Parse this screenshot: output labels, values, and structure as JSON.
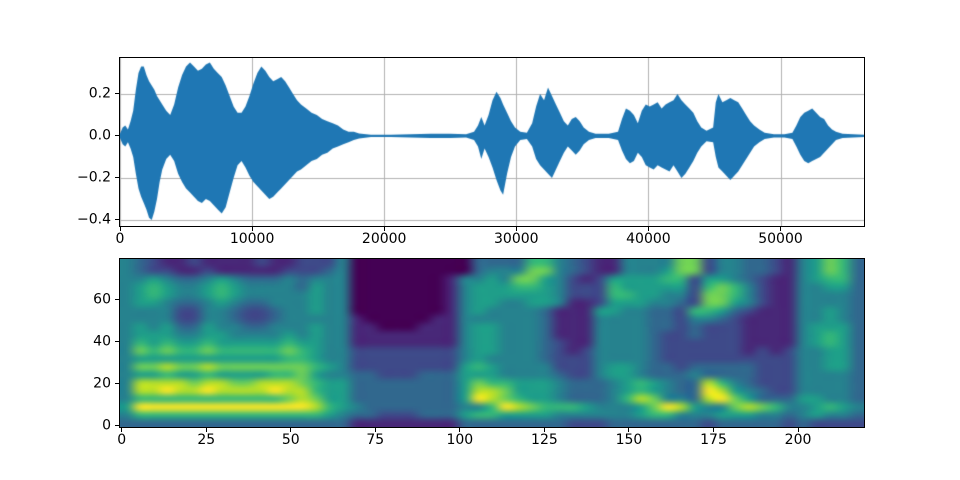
{
  "figure": {
    "background": "#ffffff",
    "type": "matplotlib-figure"
  },
  "chart_data": [
    {
      "type": "line",
      "name": "audio-waveform",
      "title": "",
      "xlabel": "",
      "ylabel": "",
      "line_color": "#1f77b4",
      "grid": true,
      "grid_color": "#b0b0b0",
      "xlim": [
        0,
        56320
      ],
      "ylim": [
        -0.429,
        0.371
      ],
      "xticks": [
        0,
        10000,
        20000,
        30000,
        40000,
        50000
      ],
      "xtick_labels": [
        "0",
        "10000",
        "20000",
        "30000",
        "40000",
        "50000"
      ],
      "yticks": [
        0.2,
        0.0,
        -0.2,
        -0.4
      ],
      "ytick_labels": [
        "0.2",
        "0.0",
        "−0.2",
        "−0.4"
      ],
      "envelope": [
        [
          0,
          -0.01,
          0.01
        ],
        [
          200,
          -0.04,
          0.04
        ],
        [
          400,
          -0.05,
          0.05
        ],
        [
          600,
          -0.03,
          0.03
        ],
        [
          800,
          -0.06,
          0.07
        ],
        [
          1000,
          -0.1,
          0.12
        ],
        [
          1200,
          -0.18,
          0.22
        ],
        [
          1400,
          -0.25,
          0.3
        ],
        [
          1600,
          -0.29,
          0.33
        ],
        [
          1800,
          -0.32,
          0.33
        ],
        [
          2000,
          -0.35,
          0.29
        ],
        [
          2200,
          -0.39,
          0.26
        ],
        [
          2400,
          -0.4,
          0.24
        ],
        [
          2600,
          -0.36,
          0.22
        ],
        [
          2800,
          -0.3,
          0.19
        ],
        [
          3000,
          -0.22,
          0.17
        ],
        [
          3200,
          -0.16,
          0.15
        ],
        [
          3500,
          -0.11,
          0.12
        ],
        [
          3800,
          -0.09,
          0.1
        ],
        [
          4100,
          -0.12,
          0.15
        ],
        [
          4400,
          -0.18,
          0.23
        ],
        [
          4700,
          -0.22,
          0.29
        ],
        [
          5000,
          -0.25,
          0.33
        ],
        [
          5300,
          -0.27,
          0.35
        ],
        [
          5600,
          -0.29,
          0.33
        ],
        [
          5900,
          -0.31,
          0.31
        ],
        [
          6200,
          -0.32,
          0.32
        ],
        [
          6500,
          -0.3,
          0.34
        ],
        [
          6800,
          -0.31,
          0.35
        ],
        [
          7100,
          -0.33,
          0.32
        ],
        [
          7400,
          -0.35,
          0.3
        ],
        [
          7700,
          -0.37,
          0.28
        ],
        [
          8000,
          -0.34,
          0.24
        ],
        [
          8300,
          -0.27,
          0.19
        ],
        [
          8600,
          -0.2,
          0.14
        ],
        [
          8900,
          -0.14,
          0.11
        ],
        [
          9200,
          -0.12,
          0.11
        ],
        [
          9500,
          -0.15,
          0.14
        ],
        [
          9800,
          -0.19,
          0.19
        ],
        [
          10100,
          -0.22,
          0.25
        ],
        [
          10400,
          -0.24,
          0.3
        ],
        [
          10700,
          -0.26,
          0.33
        ],
        [
          11000,
          -0.28,
          0.31
        ],
        [
          11300,
          -0.3,
          0.28
        ],
        [
          11600,
          -0.29,
          0.26
        ],
        [
          11900,
          -0.27,
          0.27
        ],
        [
          12200,
          -0.25,
          0.28
        ],
        [
          12500,
          -0.23,
          0.26
        ],
        [
          12800,
          -0.21,
          0.23
        ],
        [
          13100,
          -0.19,
          0.2
        ],
        [
          13400,
          -0.17,
          0.17
        ],
        [
          13700,
          -0.16,
          0.15
        ],
        [
          14100,
          -0.14,
          0.13
        ],
        [
          14500,
          -0.12,
          0.11
        ],
        [
          14900,
          -0.11,
          0.1
        ],
        [
          15300,
          -0.09,
          0.08
        ],
        [
          15700,
          -0.08,
          0.07
        ],
        [
          16100,
          -0.06,
          0.06
        ],
        [
          16500,
          -0.05,
          0.05
        ],
        [
          16900,
          -0.04,
          0.03
        ],
        [
          17300,
          -0.03,
          0.02
        ],
        [
          17700,
          -0.02,
          0.02
        ],
        [
          18100,
          -0.012,
          0.012
        ],
        [
          19000,
          -0.005,
          0.005
        ],
        [
          20500,
          -0.005,
          0.005
        ],
        [
          22000,
          -0.008,
          0.008
        ],
        [
          23500,
          -0.01,
          0.01
        ],
        [
          25000,
          -0.01,
          0.01
        ],
        [
          26200,
          -0.008,
          0.008
        ],
        [
          26800,
          -0.02,
          0.02
        ],
        [
          27100,
          -0.05,
          0.05
        ],
        [
          27350,
          -0.11,
          0.09
        ],
        [
          27600,
          -0.06,
          0.05
        ],
        [
          27900,
          -0.1,
          0.1
        ],
        [
          28200,
          -0.15,
          0.17
        ],
        [
          28500,
          -0.21,
          0.21
        ],
        [
          28800,
          -0.26,
          0.18
        ],
        [
          29000,
          -0.28,
          0.15
        ],
        [
          29300,
          -0.18,
          0.11
        ],
        [
          29600,
          -0.1,
          0.07
        ],
        [
          29900,
          -0.05,
          0.04
        ],
        [
          30300,
          -0.02,
          0.02
        ],
        [
          30800,
          -0.015,
          0.015
        ],
        [
          31200,
          -0.05,
          0.06
        ],
        [
          31500,
          -0.11,
          0.14
        ],
        [
          31800,
          -0.14,
          0.2
        ],
        [
          32100,
          -0.16,
          0.17
        ],
        [
          32400,
          -0.18,
          0.23
        ],
        [
          32700,
          -0.2,
          0.19
        ],
        [
          33000,
          -0.16,
          0.15
        ],
        [
          33300,
          -0.12,
          0.11
        ],
        [
          33600,
          -0.08,
          0.07
        ],
        [
          33900,
          -0.05,
          0.05
        ],
        [
          34200,
          -0.07,
          0.08
        ],
        [
          34500,
          -0.09,
          0.09
        ],
        [
          34800,
          -0.07,
          0.07
        ],
        [
          35100,
          -0.04,
          0.04
        ],
        [
          35500,
          -0.02,
          0.02
        ],
        [
          36000,
          -0.01,
          0.01
        ],
        [
          37000,
          -0.01,
          0.01
        ],
        [
          37700,
          -0.02,
          0.02
        ],
        [
          38000,
          -0.07,
          0.08
        ],
        [
          38300,
          -0.11,
          0.13
        ],
        [
          38600,
          -0.13,
          0.12
        ],
        [
          38900,
          -0.12,
          0.1
        ],
        [
          39200,
          -0.08,
          0.06
        ],
        [
          39500,
          -0.1,
          0.12
        ],
        [
          39800,
          -0.14,
          0.15
        ],
        [
          40100,
          -0.15,
          0.14
        ],
        [
          40400,
          -0.16,
          0.15
        ],
        [
          40700,
          -0.14,
          0.16
        ],
        [
          41000,
          -0.15,
          0.13
        ],
        [
          41300,
          -0.16,
          0.15
        ],
        [
          41600,
          -0.17,
          0.16
        ],
        [
          41900,
          -0.14,
          0.17
        ],
        [
          42200,
          -0.17,
          0.2
        ],
        [
          42500,
          -0.2,
          0.17
        ],
        [
          42800,
          -0.18,
          0.15
        ],
        [
          43100,
          -0.15,
          0.13
        ],
        [
          43400,
          -0.12,
          0.11
        ],
        [
          43700,
          -0.08,
          0.07
        ],
        [
          44000,
          -0.05,
          0.04
        ],
        [
          44400,
          -0.025,
          0.025
        ],
        [
          44900,
          -0.03,
          0.04
        ],
        [
          45100,
          -0.1,
          0.16
        ],
        [
          45300,
          -0.15,
          0.2
        ],
        [
          45600,
          -0.17,
          0.16
        ],
        [
          45900,
          -0.19,
          0.17
        ],
        [
          46200,
          -0.21,
          0.18
        ],
        [
          46500,
          -0.19,
          0.17
        ],
        [
          46800,
          -0.17,
          0.16
        ],
        [
          47100,
          -0.14,
          0.13
        ],
        [
          47400,
          -0.11,
          0.1
        ],
        [
          47700,
          -0.08,
          0.07
        ],
        [
          48000,
          -0.05,
          0.05
        ],
        [
          48400,
          -0.03,
          0.03
        ],
        [
          48800,
          -0.015,
          0.015
        ],
        [
          49500,
          -0.008,
          0.008
        ],
        [
          50300,
          -0.008,
          0.008
        ],
        [
          50900,
          -0.015,
          0.015
        ],
        [
          51200,
          -0.05,
          0.05
        ],
        [
          51500,
          -0.09,
          0.09
        ],
        [
          51800,
          -0.12,
          0.11
        ],
        [
          52100,
          -0.13,
          0.12
        ],
        [
          52400,
          -0.12,
          0.13
        ],
        [
          52700,
          -0.11,
          0.11
        ],
        [
          53000,
          -0.1,
          0.09
        ],
        [
          53300,
          -0.08,
          0.08
        ],
        [
          53600,
          -0.06,
          0.05
        ],
        [
          53900,
          -0.04,
          0.03
        ],
        [
          54200,
          -0.02,
          0.02
        ],
        [
          54700,
          -0.01,
          0.01
        ],
        [
          55500,
          -0.008,
          0.008
        ],
        [
          56320,
          -0.005,
          0.005
        ]
      ]
    },
    {
      "type": "heatmap",
      "name": "mel-spectrogram",
      "title": "",
      "xlabel": "",
      "ylabel": "",
      "colormap": "viridis",
      "colormap_levels": [
        "#440154",
        "#482878",
        "#3e4a89",
        "#31688e",
        "#26828e",
        "#1f9e89",
        "#35b779",
        "#6ece58",
        "#b5de2b",
        "#fde725"
      ],
      "n_frames": 220,
      "n_mels": 80,
      "xlim": [
        -0.5,
        219.5
      ],
      "ylim": [
        -0.5,
        79.5
      ],
      "xticks": [
        0,
        25,
        50,
        75,
        100,
        125,
        150,
        175,
        200
      ],
      "xtick_labels": [
        "0",
        "25",
        "50",
        "75",
        "100",
        "125",
        "150",
        "175",
        "200"
      ],
      "yticks": [
        0,
        20,
        40,
        60
      ],
      "ytick_labels": [
        "0",
        "20",
        "40",
        "60"
      ],
      "grid_cols": 55,
      "grid_rows": 21,
      "intensity_scale": "0=min(dark purple) .. 9=max(yellow)",
      "intensity_rows": [
        "4321121111211222400000000033336643211444477244332145763",
        "4322112111112223400000000034447743211444577244332145763",
        "4454334543334344400000001445477542125555662554321145663",
        "4565445654444354400000001455566542226555552676421144553",
        "4565445654444454400000001455555542226655442776421144443",
        "4554334543344454400000001455445541125554432775421144443",
        "4444224432234454400000001454444311155443326653211144543",
        "4444224432234444410000011444444311144443324432111144543",
        "4545335443344454411000111455444311144443323222111145553",
        "4555445544445454411111111455444311144443223222111145653",
        "4656556555556554411111111455444321144443222222111145653",
        "4767667666667654422222222455444321244443222222121244553",
        "4555555555556654422222222454444322244443222222222244553",
        "4778778777777765422222222565444422245543323333322244553",
        "4556556555566754433222333555444432245543334333322244443",
        "4888878877888765533333333576655543334565433864322244443",
        "4889889888898865533333333588755543334565433985432244443",
        "4666666666667875533333333598765543334687443897533355443",
        "5999999999999986543333333446987666544457985447876445654",
        "4666666666666665433222333566555544444456644455544345443",
        "3333333333333333311111111333333332223333333233333232222"
      ]
    }
  ]
}
